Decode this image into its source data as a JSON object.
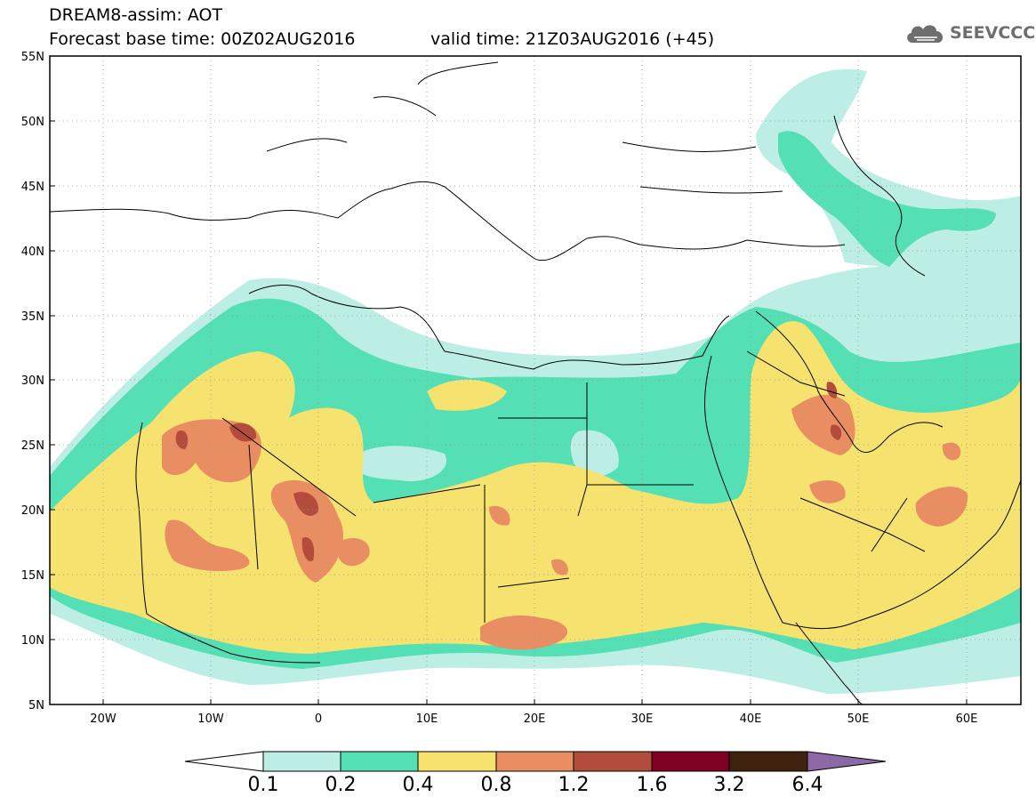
{
  "header": {
    "title": "DREAM8-assim: AOT",
    "base_time": "Forecast base time: 00Z02AUG2016",
    "valid_time": "valid time: 21Z03AUG2016 (+45)",
    "logo": "SEEVCCC"
  },
  "map": {
    "variable": "AOT",
    "lon_range": [
      -25,
      65
    ],
    "lat_range": [
      5,
      55
    ],
    "lon_ticks": [
      "20W",
      "10W",
      "0",
      "10E",
      "20E",
      "30E",
      "40E",
      "50E",
      "60E"
    ],
    "lat_ticks": [
      "5N",
      "10N",
      "15N",
      "20N",
      "25N",
      "30N",
      "35N",
      "40N",
      "45N",
      "50N",
      "55N"
    ],
    "gridlines": true
  },
  "colorbar": {
    "labels": [
      "0.1",
      "0.2",
      "0.4",
      "0.8",
      "1.2",
      "1.6",
      "3.2",
      "6.4"
    ],
    "colors": {
      "lt0.1": "#ffffff",
      "0.1-0.2": "#bdeee5",
      "0.2-0.4": "#55dfb5",
      "0.4-0.8": "#f6e26f",
      "0.8-1.2": "#e98d62",
      "1.2-1.6": "#b34c3c",
      "1.6-3.2": "#7e0022",
      "3.2-6.4": "#40230f",
      "gt6.4": "#8c69a6"
    }
  }
}
